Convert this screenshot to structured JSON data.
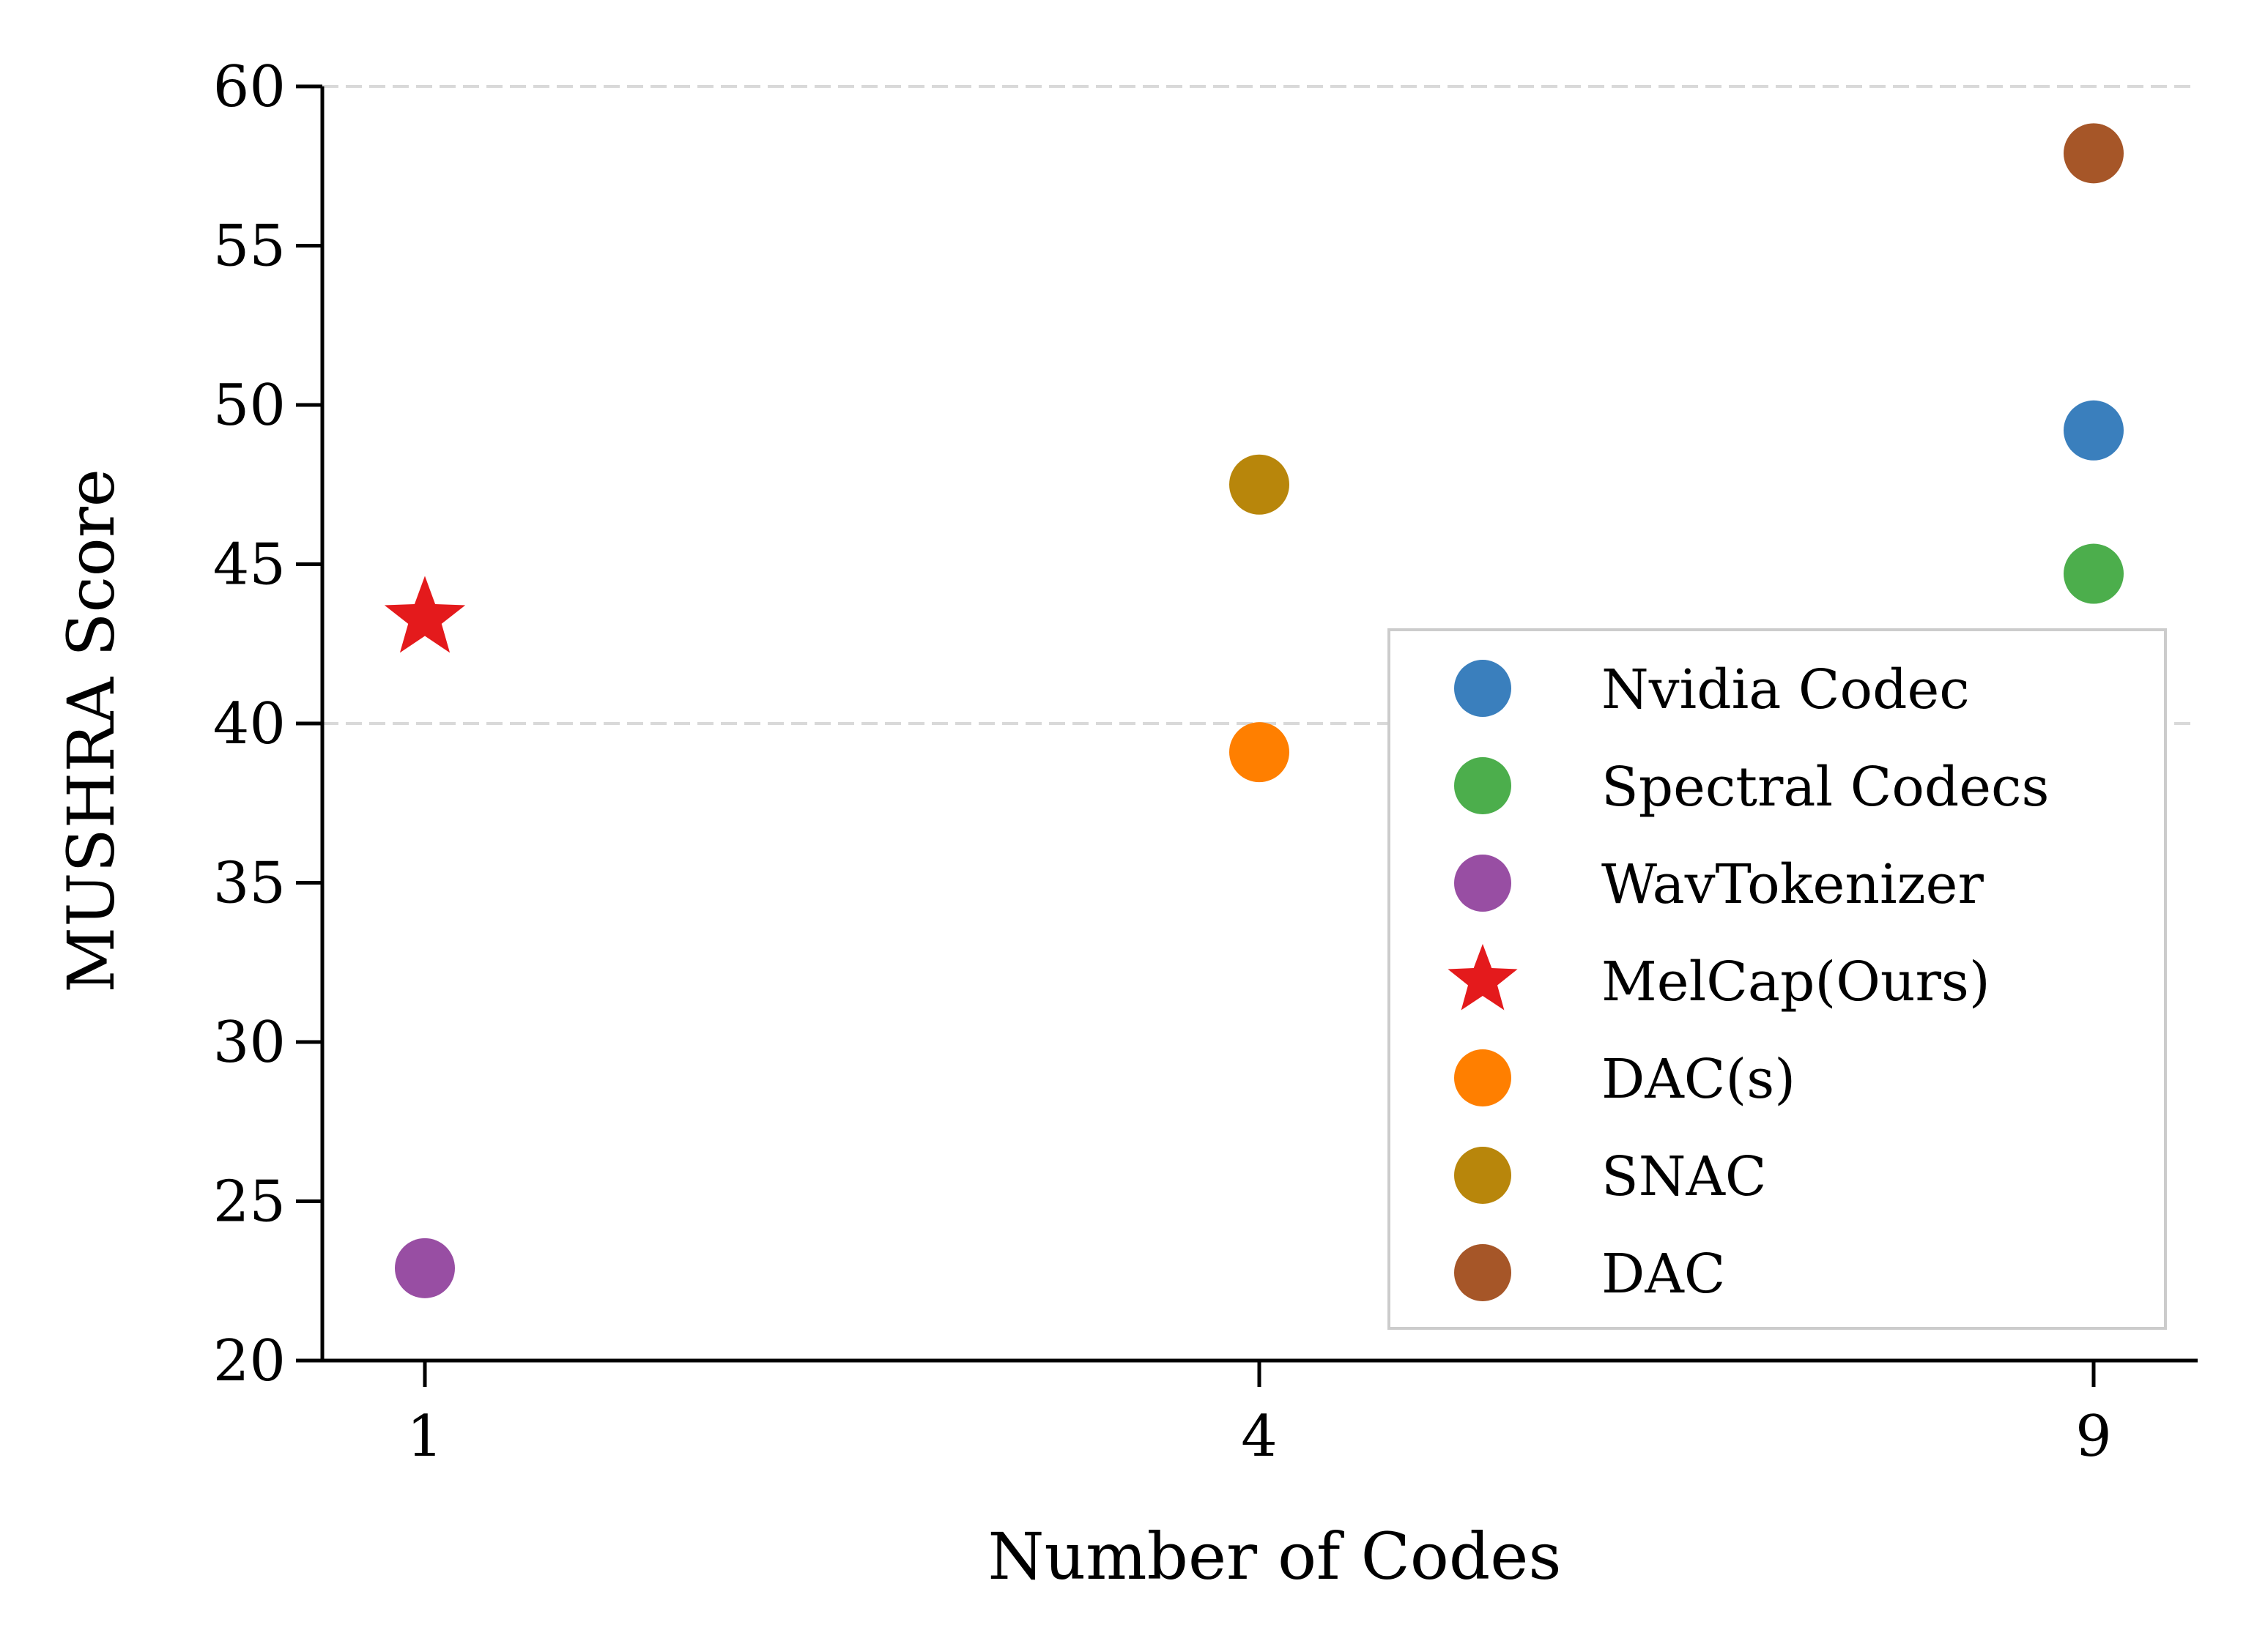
{
  "chart_data": {
    "type": "scatter",
    "title": "",
    "xlabel": "Number of Codes",
    "ylabel": "MUSHRA Score",
    "x_ticks": [
      1,
      4,
      9
    ],
    "x_tick_labels": [
      "1",
      "4",
      "9"
    ],
    "y_ticks": [
      20,
      25,
      30,
      35,
      40,
      45,
      50,
      55,
      60
    ],
    "y_tick_labels": [
      "20",
      "25",
      "30",
      "35",
      "40",
      "45",
      "50",
      "55",
      "60"
    ],
    "ylim": [
      20,
      60
    ],
    "x_scale": "sqrt",
    "gridlines_y": [
      40,
      60
    ],
    "legend_position": "lower-right",
    "series": [
      {
        "name": "Nvidia Codec",
        "marker": "circle",
        "color": "#3a7fbd",
        "points": [
          {
            "x": 9,
            "y": 49.2
          }
        ]
      },
      {
        "name": "Spectral Codecs",
        "marker": "circle",
        "color": "#4cae4c",
        "points": [
          {
            "x": 9,
            "y": 44.7
          }
        ]
      },
      {
        "name": "WavTokenizer",
        "marker": "circle",
        "color": "#984ea3",
        "points": [
          {
            "x": 1,
            "y": 22.9
          }
        ]
      },
      {
        "name": "MelCap(Ours)",
        "marker": "star",
        "color": "#e41a1c",
        "points": [
          {
            "x": 1,
            "y": 43.3
          }
        ]
      },
      {
        "name": "DAC(s)",
        "marker": "circle",
        "color": "#ff7f00",
        "points": [
          {
            "x": 4,
            "y": 39.1
          }
        ]
      },
      {
        "name": "SNAC",
        "marker": "circle",
        "color": "#b8860b",
        "points": [
          {
            "x": 4,
            "y": 47.5
          }
        ]
      },
      {
        "name": "DAC",
        "marker": "circle",
        "color": "#a65628",
        "points": [
          {
            "x": 9,
            "y": 57.9
          }
        ]
      }
    ]
  }
}
